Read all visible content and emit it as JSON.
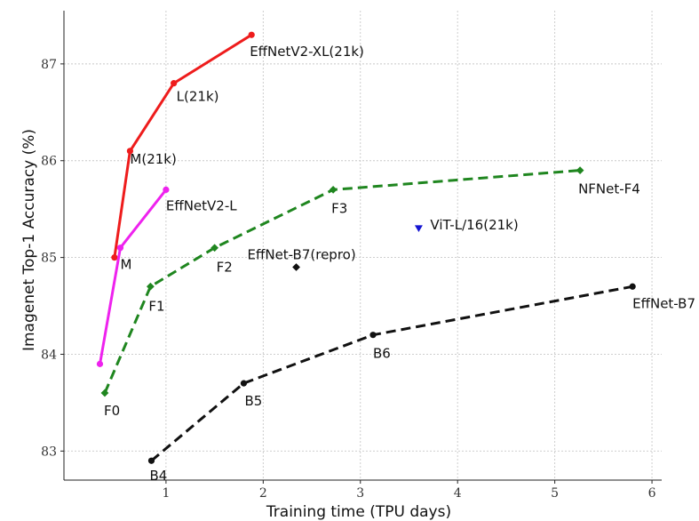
{
  "chart_data": {
    "type": "line",
    "xlabel": "Training time (TPU days)",
    "ylabel": "Imagenet Top-1 Accuracy (%)",
    "xlim": [
      -0.05,
      6.1
    ],
    "ylim": [
      82.7,
      87.55
    ],
    "xticks": [
      1,
      2,
      3,
      4,
      5,
      6
    ],
    "yticks": [
      83,
      84,
      85,
      86,
      87
    ],
    "grid": true,
    "series": [
      {
        "color": "#ee1c1c",
        "dashed": false,
        "marker": "circle",
        "points": [
          {
            "x": 0.47,
            "y": 85.0,
            "label": ""
          },
          {
            "x": 0.63,
            "y": 86.1,
            "label": "M(21k)"
          },
          {
            "x": 1.08,
            "y": 86.8,
            "label": "L(21k)"
          },
          {
            "x": 1.88,
            "y": 87.3,
            "label": "EffNetV2-XL(21k)"
          }
        ]
      },
      {
        "color": "#ee22ee",
        "dashed": false,
        "marker": "circle",
        "points": [
          {
            "x": 0.32,
            "y": 83.9,
            "label": ""
          },
          {
            "x": 0.53,
            "y": 85.1,
            "label": "M"
          },
          {
            "x": 1.0,
            "y": 85.7,
            "label": "EffNetV2-L"
          }
        ]
      },
      {
        "color": "#1f861f",
        "dashed": true,
        "marker": "diamond",
        "points": [
          {
            "x": 0.37,
            "y": 83.6,
            "label": "F0"
          },
          {
            "x": 0.84,
            "y": 84.7,
            "label": "F1"
          },
          {
            "x": 1.5,
            "y": 85.1,
            "label": "F2"
          },
          {
            "x": 2.72,
            "y": 85.7,
            "label": "F3"
          },
          {
            "x": 5.26,
            "y": 85.9,
            "label": "NFNet-F4"
          }
        ]
      },
      {
        "color": "#111111",
        "dashed": true,
        "marker": "circle",
        "points": [
          {
            "x": 0.85,
            "y": 82.9,
            "label": "B4"
          },
          {
            "x": 1.8,
            "y": 83.7,
            "label": "B5"
          },
          {
            "x": 3.13,
            "y": 84.2,
            "label": "B6"
          },
          {
            "x": 5.8,
            "y": 84.7,
            "label": "EffNet-B7"
          }
        ]
      },
      {
        "color": "#1414d2",
        "dashed": false,
        "marker": "triangle-down",
        "points": [
          {
            "x": 3.6,
            "y": 85.3,
            "label": "ViT-L/16(21k)"
          }
        ]
      },
      {
        "color": "#111111",
        "dashed": false,
        "marker": "diamond",
        "points": [
          {
            "x": 2.34,
            "y": 84.9,
            "label": "EffNet-B7(repro)"
          }
        ]
      }
    ]
  }
}
